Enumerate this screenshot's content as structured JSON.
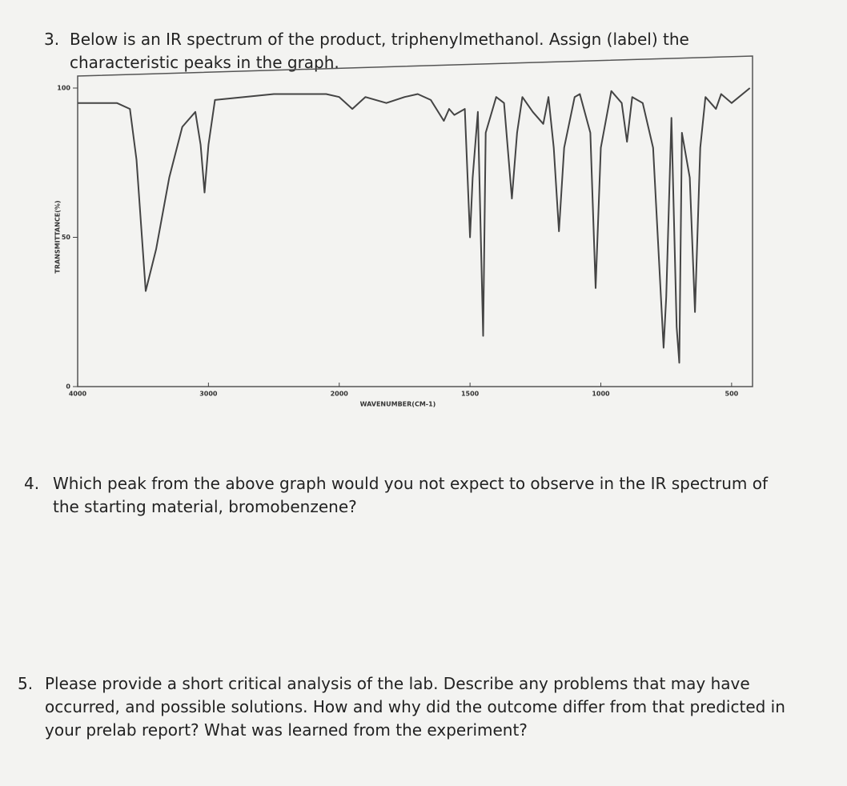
{
  "questions": [
    {
      "number": "3.",
      "text": "Below is an IR spectrum of the product, triphenylmethanol. Assign (label) the characteristic peaks in the graph."
    },
    {
      "number": "4.",
      "text": "Which peak from the above graph would you not expect to observe in the IR spectrum of the starting material, bromobenzene?"
    },
    {
      "number": "5.",
      "text": "Please provide a short critical analysis of the lab. Describe any problems that may have occurred, and possible solutions. How and why did the outcome differ from that predicted in your prelab report? What was learned from the experiment?"
    }
  ],
  "chart_data": {
    "type": "line",
    "x_label": "WAVENUMBER(CM-1)",
    "y_label": "TRANSMITTANCE(%)",
    "color": "#444444",
    "xlim": [
      4000,
      420
    ],
    "ylim": [
      0,
      100
    ],
    "xticks": [
      4000,
      3000,
      2000,
      1500,
      1000,
      500
    ],
    "yticks": [
      0,
      50,
      100
    ],
    "x": [
      4000,
      3700,
      3600,
      3550,
      3480,
      3400,
      3300,
      3200,
      3100,
      3060,
      3030,
      3000,
      2950,
      2500,
      2100,
      2000,
      1950,
      1900,
      1820,
      1750,
      1700,
      1650,
      1600,
      1580,
      1560,
      1520,
      1500,
      1490,
      1470,
      1450,
      1440,
      1400,
      1370,
      1340,
      1320,
      1300,
      1260,
      1220,
      1200,
      1180,
      1160,
      1140,
      1100,
      1080,
      1040,
      1020,
      1000,
      960,
      920,
      900,
      880,
      840,
      800,
      760,
      750,
      730,
      710,
      700,
      690,
      660,
      640,
      620,
      600,
      560,
      540,
      500,
      430
    ],
    "values": [
      95,
      95,
      93,
      76,
      32,
      46,
      70,
      87,
      92,
      81,
      65,
      81,
      96,
      98,
      98,
      97,
      93,
      97,
      95,
      97,
      98,
      96,
      89,
      93,
      91,
      93,
      50,
      70,
      92,
      17,
      85,
      97,
      95,
      63,
      85,
      97,
      92,
      88,
      97,
      80,
      52,
      80,
      97,
      98,
      85,
      33,
      80,
      99,
      95,
      82,
      97,
      95,
      80,
      13,
      30,
      90,
      20,
      8,
      85,
      70,
      25,
      80,
      97,
      93,
      98,
      95,
      100
    ]
  }
}
